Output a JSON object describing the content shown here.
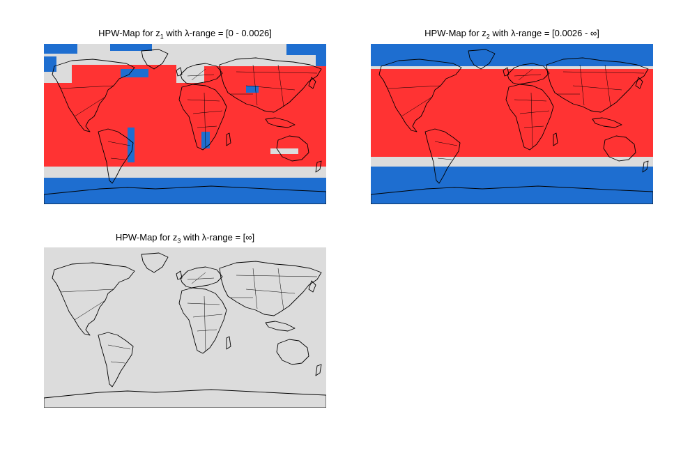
{
  "colors": {
    "red": "#ff3333",
    "blue": "#1e6ed0",
    "gray": "#dcdcdc",
    "outline": "#000000",
    "background": "#ffffff"
  },
  "panels": [
    {
      "title_prefix": "HPW-Map for z",
      "subscript": "1",
      "title_suffix": " with λ-range = [0 - 0.0026]",
      "map": "zone-one"
    },
    {
      "title_prefix": "HPW-Map for z",
      "subscript": "2",
      "title_suffix": " with λ-range = [0.0026 - ∞]",
      "map": "zone-two"
    },
    {
      "title_prefix": "HPW-Map for z",
      "subscript": "3",
      "title_suffix": " with λ-range = [∞]",
      "map": "zone-three"
    }
  ]
}
